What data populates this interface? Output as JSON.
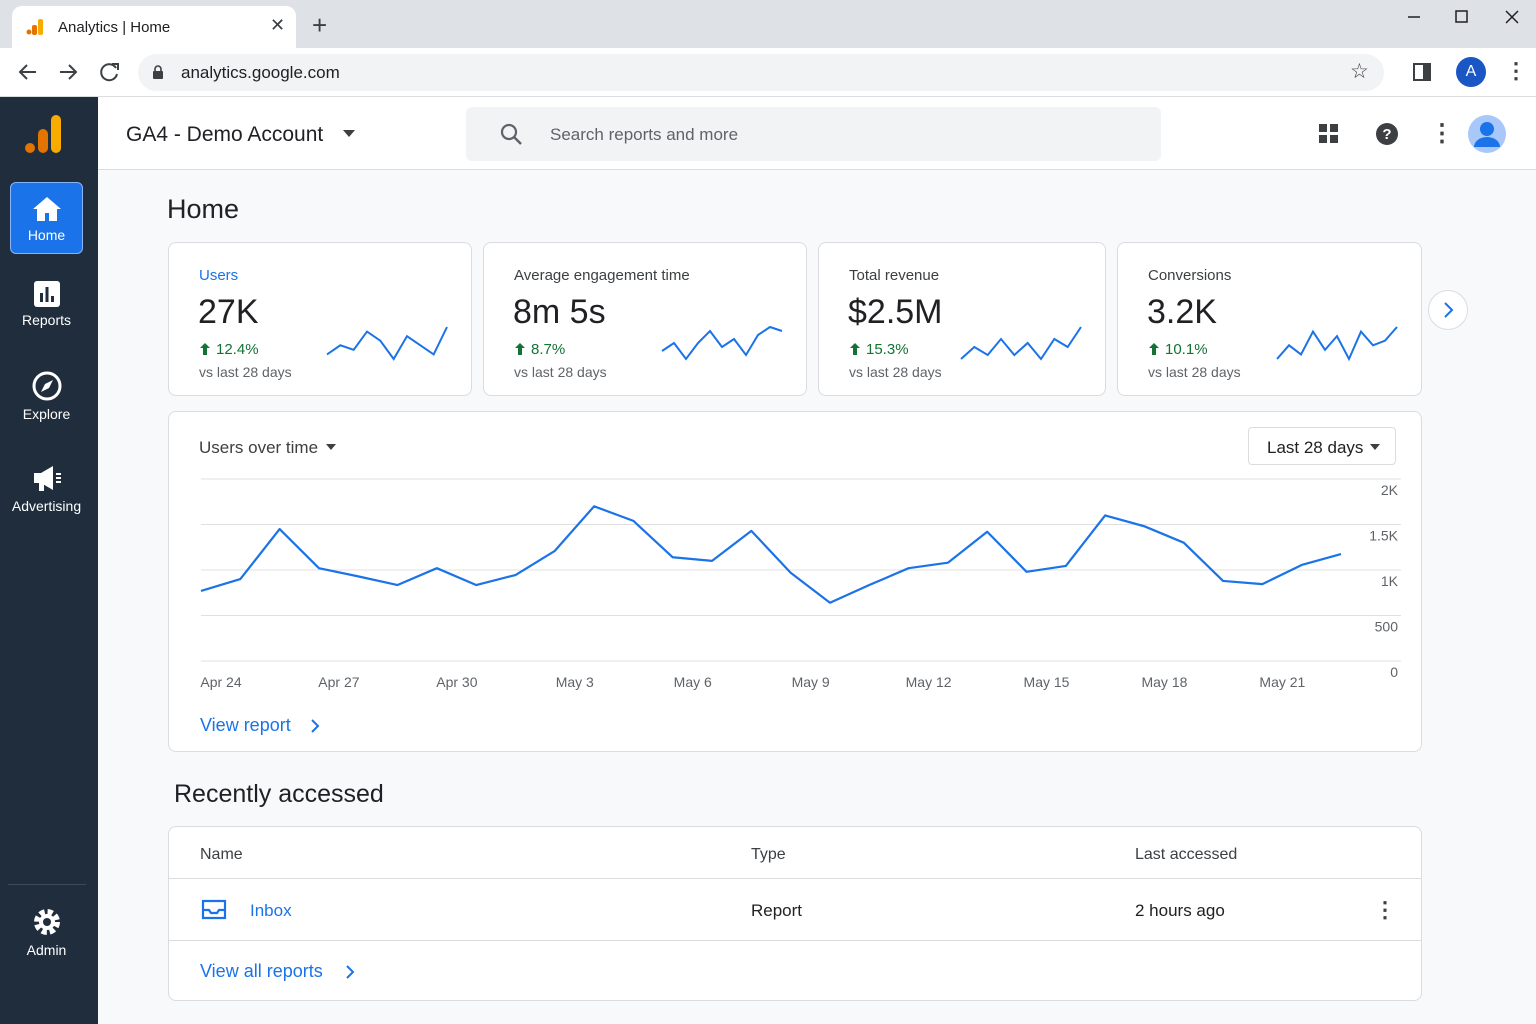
{
  "browser": {
    "tab_title": "Analytics | Home",
    "url": "analytics.google.com",
    "profile_initial": "A"
  },
  "app": {
    "account": "GA4 - Demo Account",
    "search_placeholder": "Search reports and more"
  },
  "nav": [
    {
      "label": "Home"
    },
    {
      "label": "Reports"
    },
    {
      "label": "Explore"
    },
    {
      "label": "Advertising"
    },
    {
      "label": "Admin"
    }
  ],
  "page_title": "Home",
  "cards": [
    {
      "label": "Users",
      "value": "27K",
      "change": "12.4%",
      "note": "vs last 28 days",
      "sparkline": [
        3,
        5,
        4,
        8,
        6,
        2,
        7,
        5,
        3,
        9
      ]
    },
    {
      "label": "Average engagement time",
      "value": "8m 5s",
      "change": "8.7%",
      "note": "vs last 28 days",
      "sparkline": [
        4,
        6,
        2,
        6,
        9,
        5,
        7,
        3,
        8,
        10,
        9
      ]
    },
    {
      "label": "Total revenue",
      "value": "$2.5M",
      "change": "15.3%",
      "note": "vs last 28 days",
      "sparkline": [
        3,
        6,
        4,
        8,
        4,
        7,
        3,
        8,
        6,
        11
      ]
    },
    {
      "label": "Conversions",
      "value": "3.2K",
      "change": "10.1%",
      "note": "vs last 28 days",
      "sparkline": [
        2,
        5,
        3,
        8,
        4,
        7,
        2,
        8,
        5,
        6,
        9
      ]
    }
  ],
  "chart_data": {
    "type": "line",
    "title": "Users over time",
    "range_selector": "Last 28 days",
    "categories": [
      "Apr 24",
      null,
      null,
      "Apr 27",
      null,
      null,
      "Apr 30",
      null,
      null,
      "May 3",
      null,
      null,
      "May 6",
      null,
      null,
      "May 9",
      null,
      null,
      "May 12",
      null,
      null,
      "May 15",
      null,
      null,
      "May 18",
      null,
      null,
      "May 21",
      null,
      null
    ],
    "values": [
      770,
      900,
      1450,
      1020,
      930,
      835,
      1020,
      835,
      945,
      1210,
      1700,
      1540,
      1140,
      1100,
      1430,
      970,
      640,
      835,
      1020,
      1080,
      1420,
      980,
      1045,
      1600,
      1480,
      1300,
      880,
      845,
      1055,
      1175
    ],
    "color": "#1a73e8",
    "ylim": [
      0,
      2000
    ],
    "yticks": [
      0,
      500,
      {
        "value": 1000,
        "label": "1K"
      },
      {
        "value": 1500,
        "label": "1.5K"
      },
      {
        "value": 2000,
        "label": "2K"
      }
    ],
    "grid": true,
    "link": "View report"
  },
  "recent": {
    "title": "Recently accessed",
    "columns": [
      "Name",
      "Type",
      "Last accessed"
    ],
    "rows": [
      [
        "Inbox",
        "Report",
        "2 hours ago"
      ]
    ],
    "link": "View all reports"
  }
}
